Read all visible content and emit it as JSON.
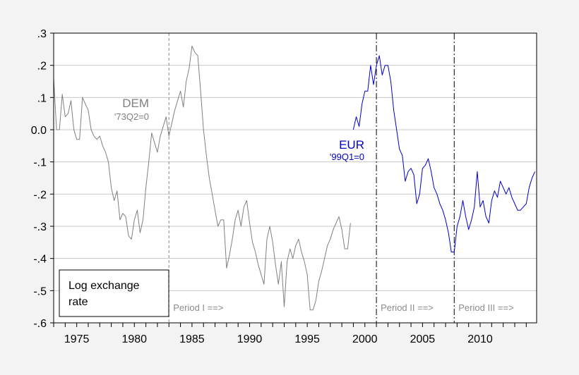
{
  "chart_data": {
    "type": "line",
    "title": "",
    "xlabel": "",
    "ylabel": "",
    "xlim": [
      1973.0,
      2014.9
    ],
    "ylim": [
      -0.6,
      0.3
    ],
    "x_ticks": [
      1975,
      1980,
      1985,
      1990,
      1995,
      2000,
      2005,
      2010
    ],
    "x_tick_labels": [
      "1975",
      "1980",
      "1985",
      "1990",
      "1995",
      "2000",
      "2005",
      "2010"
    ],
    "y_ticks": [
      0.3,
      0.2,
      0.1,
      0.0,
      -0.1,
      -0.2,
      -0.3,
      -0.4,
      -0.5,
      -0.6
    ],
    "y_tick_labels": [
      ".3",
      ".2",
      ".1",
      "0.0",
      "-.1",
      "-.2",
      "-.3",
      "-.4",
      "-.5",
      "-.6"
    ],
    "grid": true,
    "legend_box": {
      "line1": "Log exchange",
      "line2": "rate"
    },
    "series": [
      {
        "name": "DEM",
        "subtitle": "'73Q2=0",
        "color": "#808080",
        "x": [
          1973.0,
          1973.25,
          1973.5,
          1973.75,
          1974.0,
          1974.25,
          1974.5,
          1974.75,
          1975.0,
          1975.25,
          1975.5,
          1975.75,
          1976.0,
          1976.25,
          1976.5,
          1976.75,
          1977.0,
          1977.25,
          1977.5,
          1977.75,
          1978.0,
          1978.25,
          1978.5,
          1978.75,
          1979.0,
          1979.25,
          1979.5,
          1979.75,
          1980.0,
          1980.25,
          1980.5,
          1980.75,
          1981.0,
          1981.25,
          1981.5,
          1981.75,
          1982.0,
          1982.25,
          1982.5,
          1982.75,
          1983.0,
          1983.25,
          1983.5,
          1983.75,
          1984.0,
          1984.25,
          1984.5,
          1984.75,
          1985.0,
          1985.25,
          1985.5,
          1985.75,
          1986.0,
          1986.25,
          1986.5,
          1986.75,
          1987.0,
          1987.25,
          1987.5,
          1987.75,
          1988.0,
          1988.25,
          1988.5,
          1988.75,
          1989.0,
          1989.25,
          1989.5,
          1989.75,
          1990.0,
          1990.25,
          1990.5,
          1990.75,
          1991.0,
          1991.25,
          1991.5,
          1991.75,
          1992.0,
          1992.25,
          1992.5,
          1992.75,
          1993.0,
          1993.25,
          1993.5,
          1993.75,
          1994.0,
          1994.25,
          1994.5,
          1994.75,
          1995.0,
          1995.25,
          1995.5,
          1995.75,
          1996.0,
          1996.25,
          1996.5,
          1996.75,
          1997.0,
          1997.25,
          1997.5,
          1997.75,
          1998.0,
          1998.25,
          1998.5,
          1998.75
        ],
        "y": [
          0.16,
          0.0,
          0.0,
          0.11,
          0.04,
          0.05,
          0.09,
          0.0,
          -0.03,
          -0.03,
          0.1,
          0.08,
          0.06,
          0.0,
          -0.02,
          -0.03,
          -0.02,
          -0.05,
          -0.07,
          -0.1,
          -0.18,
          -0.22,
          -0.19,
          -0.28,
          -0.26,
          -0.27,
          -0.33,
          -0.34,
          -0.28,
          -0.25,
          -0.32,
          -0.28,
          -0.18,
          -0.1,
          -0.01,
          -0.04,
          -0.07,
          -0.02,
          0.01,
          0.04,
          -0.02,
          0.02,
          0.06,
          0.09,
          0.12,
          0.07,
          0.15,
          0.19,
          0.26,
          0.24,
          0.23,
          0.12,
          0.0,
          -0.08,
          -0.15,
          -0.2,
          -0.25,
          -0.3,
          -0.28,
          -0.28,
          -0.43,
          -0.39,
          -0.34,
          -0.28,
          -0.25,
          -0.3,
          -0.24,
          -0.22,
          -0.29,
          -0.35,
          -0.38,
          -0.42,
          -0.45,
          -0.48,
          -0.34,
          -0.3,
          -0.35,
          -0.42,
          -0.48,
          -0.41,
          -0.55,
          -0.41,
          -0.37,
          -0.4,
          -0.36,
          -0.34,
          -0.38,
          -0.41,
          -0.45,
          -0.56,
          -0.56,
          -0.53,
          -0.47,
          -0.44,
          -0.4,
          -0.36,
          -0.34,
          -0.31,
          -0.29,
          -0.27,
          -0.31,
          -0.37,
          -0.37,
          -0.29
        ]
      },
      {
        "name": "EUR",
        "subtitle": "'99Q1=0",
        "color": "#0000cc",
        "x": [
          1999.0,
          1999.25,
          1999.5,
          1999.75,
          2000.0,
          2000.25,
          2000.5,
          2000.75,
          2001.0,
          2001.25,
          2001.5,
          2001.75,
          2002.0,
          2002.25,
          2002.5,
          2002.75,
          2003.0,
          2003.25,
          2003.5,
          2003.75,
          2004.0,
          2004.25,
          2004.5,
          2004.75,
          2005.0,
          2005.25,
          2005.5,
          2005.75,
          2006.0,
          2006.25,
          2006.5,
          2006.75,
          2007.0,
          2007.25,
          2007.5,
          2007.75,
          2008.0,
          2008.25,
          2008.5,
          2008.75,
          2009.0,
          2009.25,
          2009.5,
          2009.75,
          2010.0,
          2010.25,
          2010.5,
          2010.75,
          2011.0,
          2011.25,
          2011.5,
          2011.75,
          2012.0,
          2012.25,
          2012.5,
          2012.75,
          2013.0,
          2013.25,
          2013.5,
          2013.75,
          2014.0,
          2014.25,
          2014.5,
          2014.75
        ],
        "y": [
          0.0,
          0.04,
          0.01,
          0.08,
          0.12,
          0.12,
          0.2,
          0.14,
          0.2,
          0.23,
          0.17,
          0.2,
          0.2,
          0.15,
          0.06,
          0.0,
          -0.06,
          -0.08,
          -0.16,
          -0.13,
          -0.12,
          -0.14,
          -0.23,
          -0.2,
          -0.12,
          -0.11,
          -0.09,
          -0.13,
          -0.18,
          -0.2,
          -0.23,
          -0.25,
          -0.28,
          -0.32,
          -0.38,
          -0.38,
          -0.3,
          -0.27,
          -0.22,
          -0.27,
          -0.31,
          -0.28,
          -0.24,
          -0.13,
          -0.24,
          -0.22,
          -0.27,
          -0.29,
          -0.22,
          -0.19,
          -0.21,
          -0.16,
          -0.18,
          -0.2,
          -0.18,
          -0.21,
          -0.23,
          -0.25,
          -0.25,
          -0.24,
          -0.23,
          -0.18,
          -0.15,
          -0.13
        ]
      }
    ],
    "vlines": [
      {
        "x": 1983.0,
        "label": "Period I ==>",
        "style": "dashed-gray"
      },
      {
        "x": 2001.0,
        "label": "Period II ==>",
        "style": "dashdot-black"
      },
      {
        "x": 2007.75,
        "label": "Period III ==>",
        "style": "dashdot-black"
      }
    ]
  }
}
